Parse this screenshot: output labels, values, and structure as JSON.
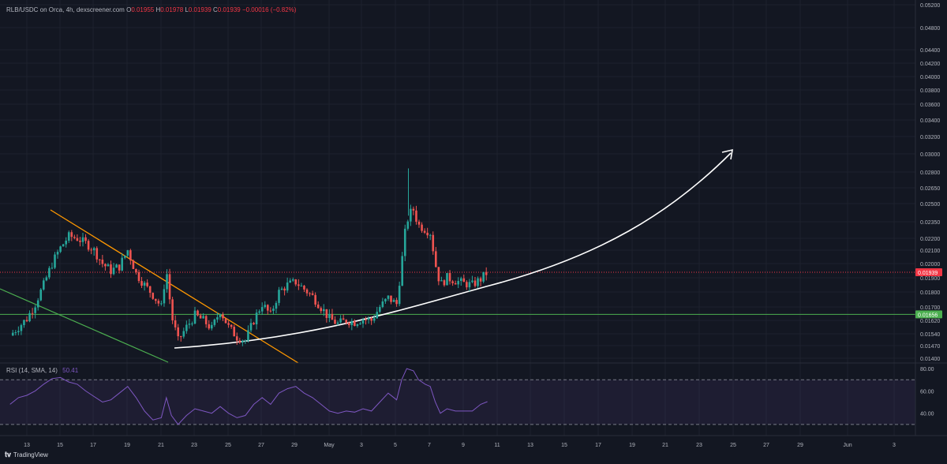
{
  "legend": {
    "symbol": "RLB/USDC on Orca, 4h, dexscreener.com",
    "o_label": "O",
    "o": "0.01955",
    "h_label": "H",
    "h": "0.01978",
    "l_label": "L",
    "l": "0.01939",
    "c_label": "C",
    "c": "0.01939",
    "change": "−0.00016 (−0.82%)"
  },
  "rsi_legend": {
    "label": "RSI (14, SMA, 14)",
    "value": "50.41"
  },
  "brand": "TradingView",
  "colors": {
    "background": "#131722",
    "up": "#26a69a",
    "down": "#ef5350",
    "rsi": "#7e57c2",
    "support": "#4caf50",
    "downtrend": "#ff9800",
    "last_price": "#f23645",
    "curve": "#ffffff"
  },
  "chart_data": [
    {
      "type": "candlestick",
      "x_ticks": [
        "13",
        "15",
        "17",
        "19",
        "21",
        "23",
        "25",
        "27",
        "29",
        "May",
        "3",
        "5",
        "7",
        "9",
        "11",
        "13",
        "15",
        "17",
        "19",
        "21",
        "23",
        "25",
        "27",
        "29",
        "Jun",
        "3"
      ],
      "y_ticks": [
        "0.05200",
        "0.04800",
        "0.04400",
        "0.04200",
        "0.04000",
        "0.03800",
        "0.03600",
        "0.03400",
        "0.03200",
        "0.03000",
        "0.02800",
        "0.02650",
        "0.02500",
        "0.02350",
        "0.02200",
        "0.02100",
        "0.02000",
        "0.01900",
        "0.01800",
        "0.01700",
        "0.01620",
        "0.01540",
        "0.01470",
        "0.01400"
      ],
      "price_labels": {
        "last": "0.01939",
        "support": "0.01656"
      },
      "close_trend_approx": [
        [
          12.0,
          0.0153
        ],
        [
          12.5,
          0.0158
        ],
        [
          13.0,
          0.0163
        ],
        [
          13.5,
          0.0172
        ],
        [
          14.0,
          0.0185
        ],
        [
          14.5,
          0.02
        ],
        [
          15.0,
          0.0212
        ],
        [
          15.5,
          0.0222
        ],
        [
          16.0,
          0.022
        ],
        [
          16.5,
          0.0216
        ],
        [
          17.0,
          0.021
        ],
        [
          17.5,
          0.02
        ],
        [
          18.0,
          0.0195
        ],
        [
          18.5,
          0.0198
        ],
        [
          19.0,
          0.021
        ],
        [
          19.5,
          0.0193
        ],
        [
          20.0,
          0.0185
        ],
        [
          20.5,
          0.0178
        ],
        [
          21.0,
          0.017
        ],
        [
          21.3,
          0.0196
        ],
        [
          21.6,
          0.0165
        ],
        [
          22.0,
          0.015
        ],
        [
          22.5,
          0.0158
        ],
        [
          23.0,
          0.0165
        ],
        [
          23.5,
          0.0162
        ],
        [
          24.0,
          0.0157
        ],
        [
          24.5,
          0.0168
        ],
        [
          25.0,
          0.0158
        ],
        [
          25.5,
          0.0152
        ],
        [
          26.0,
          0.015
        ],
        [
          26.5,
          0.0162
        ],
        [
          27.0,
          0.0172
        ],
        [
          27.5,
          0.0165
        ],
        [
          28.0,
          0.018
        ],
        [
          28.5,
          0.0185
        ],
        [
          29.0,
          0.0187
        ],
        [
          29.5,
          0.0182
        ],
        [
          30.0,
          0.0177
        ],
        [
          30.5,
          0.017
        ],
        [
          31.0,
          0.0163
        ],
        [
          31.5,
          0.016
        ],
        [
          32.0,
          0.0162
        ],
        [
          32.5,
          0.0161
        ],
        [
          33.0,
          0.0163
        ],
        [
          33.5,
          0.0162
        ],
        [
          34.0,
          0.017
        ],
        [
          34.5,
          0.0176
        ],
        [
          35.0,
          0.0172
        ],
        [
          35.3,
          0.02
        ],
        [
          35.5,
          0.0225
        ],
        [
          35.7,
          0.024
        ],
        [
          36.0,
          0.0245
        ],
        [
          36.3,
          0.0232
        ],
        [
          36.7,
          0.0228
        ],
        [
          37.0,
          0.0225
        ],
        [
          37.3,
          0.02
        ],
        [
          37.6,
          0.0185
        ],
        [
          38.0,
          0.019
        ],
        [
          38.5,
          0.0188
        ],
        [
          39.0,
          0.0186
        ],
        [
          39.5,
          0.0185
        ],
        [
          40.0,
          0.0189
        ],
        [
          40.4,
          0.0194
        ]
      ],
      "high_approx": 0.0284,
      "lines": [
        {
          "name": "support",
          "price": 0.01656
        },
        {
          "name": "last-price",
          "price": 0.01939
        }
      ]
    },
    {
      "type": "line",
      "series": [
        {
          "values_approx": [
            [
              12.0,
              48
            ],
            [
              12.5,
              54
            ],
            [
              13.0,
              56
            ],
            [
              13.5,
              60
            ],
            [
              14.0,
              66
            ],
            [
              14.5,
              71
            ],
            [
              15.0,
              72
            ],
            [
              15.5,
              68
            ],
            [
              16.0,
              66
            ],
            [
              16.5,
              60
            ],
            [
              17.0,
              55
            ],
            [
              17.5,
              50
            ],
            [
              18.0,
              52
            ],
            [
              18.5,
              58
            ],
            [
              19.0,
              64
            ],
            [
              19.5,
              54
            ],
            [
              20.0,
              42
            ],
            [
              20.5,
              34
            ],
            [
              21.0,
              36
            ],
            [
              21.3,
              54
            ],
            [
              21.6,
              38
            ],
            [
              22.0,
              30
            ],
            [
              22.5,
              38
            ],
            [
              23.0,
              44
            ],
            [
              23.5,
              42
            ],
            [
              24.0,
              40
            ],
            [
              24.5,
              46
            ],
            [
              25.0,
              40
            ],
            [
              25.5,
              36
            ],
            [
              26.0,
              38
            ],
            [
              26.5,
              48
            ],
            [
              27.0,
              54
            ],
            [
              27.5,
              48
            ],
            [
              28.0,
              58
            ],
            [
              28.5,
              62
            ],
            [
              29.0,
              64
            ],
            [
              29.5,
              58
            ],
            [
              30.0,
              54
            ],
            [
              30.5,
              48
            ],
            [
              31.0,
              42
            ],
            [
              31.5,
              40
            ],
            [
              32.0,
              42
            ],
            [
              32.5,
              41
            ],
            [
              33.0,
              44
            ],
            [
              33.5,
              42
            ],
            [
              34.0,
              50
            ],
            [
              34.5,
              58
            ],
            [
              35.0,
              52
            ],
            [
              35.3,
              70
            ],
            [
              35.6,
              80
            ],
            [
              36.0,
              78
            ],
            [
              36.3,
              70
            ],
            [
              36.7,
              66
            ],
            [
              37.0,
              64
            ],
            [
              37.3,
              50
            ],
            [
              37.6,
              40
            ],
            [
              38.0,
              44
            ],
            [
              38.5,
              42
            ],
            [
              39.0,
              42
            ],
            [
              39.5,
              42
            ],
            [
              40.0,
              48
            ],
            [
              40.4,
              50.4
            ]
          ]
        }
      ],
      "y_ticks": [
        "80.00",
        "60.00",
        "40.00"
      ],
      "ylim": [
        20,
        85
      ]
    }
  ]
}
